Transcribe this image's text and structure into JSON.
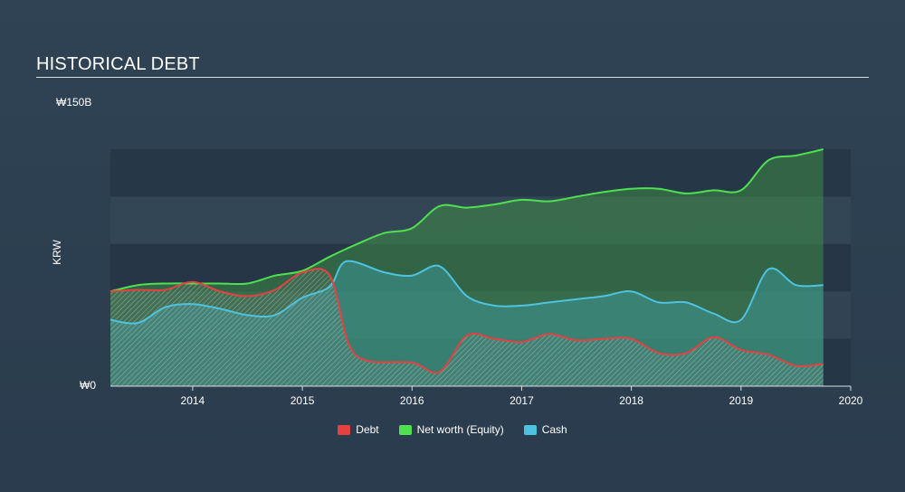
{
  "chart_data": {
    "type": "area",
    "title": "HISTORICAL DEBT",
    "ylabel": "KRW",
    "ytick_top": "₩150B",
    "ytick_zero": "₩0",
    "ylim": [
      0,
      150
    ],
    "xlim": [
      2013.25,
      2020.0
    ],
    "x_ticks": [
      "2014",
      "2015",
      "2016",
      "2017",
      "2018",
      "2019",
      "2020"
    ],
    "grid": true,
    "legend_position": "bottom-center",
    "series": [
      {
        "name": "Net worth (Equity)",
        "color": "#4fe04f",
        "points": [
          [
            2013.25,
            60
          ],
          [
            2013.5,
            64
          ],
          [
            2013.75,
            65
          ],
          [
            2014.0,
            65
          ],
          [
            2014.25,
            65
          ],
          [
            2014.5,
            65
          ],
          [
            2014.75,
            70
          ],
          [
            2015.0,
            73
          ],
          [
            2015.25,
            82
          ],
          [
            2015.5,
            90
          ],
          [
            2015.75,
            97
          ],
          [
            2016.0,
            100
          ],
          [
            2016.25,
            114
          ],
          [
            2016.5,
            113
          ],
          [
            2016.75,
            115
          ],
          [
            2017.0,
            118
          ],
          [
            2017.25,
            117
          ],
          [
            2017.5,
            120
          ],
          [
            2017.75,
            123
          ],
          [
            2018.0,
            125
          ],
          [
            2018.25,
            125
          ],
          [
            2018.5,
            122
          ],
          [
            2018.75,
            124
          ],
          [
            2019.0,
            124
          ],
          [
            2019.25,
            143
          ],
          [
            2019.5,
            146
          ],
          [
            2019.75,
            150
          ]
        ]
      },
      {
        "name": "Cash",
        "color": "#4ec3e0",
        "points": [
          [
            2013.25,
            42
          ],
          [
            2013.5,
            40
          ],
          [
            2013.75,
            50
          ],
          [
            2014.0,
            52
          ],
          [
            2014.25,
            49
          ],
          [
            2014.5,
            45
          ],
          [
            2014.75,
            45
          ],
          [
            2015.0,
            56
          ],
          [
            2015.25,
            63
          ],
          [
            2015.4,
            79
          ],
          [
            2015.75,
            72
          ],
          [
            2016.0,
            70
          ],
          [
            2016.25,
            76
          ],
          [
            2016.5,
            57
          ],
          [
            2016.75,
            51
          ],
          [
            2017.0,
            51
          ],
          [
            2017.25,
            53
          ],
          [
            2017.5,
            55
          ],
          [
            2017.75,
            57
          ],
          [
            2018.0,
            60
          ],
          [
            2018.25,
            53
          ],
          [
            2018.5,
            53
          ],
          [
            2018.75,
            46
          ],
          [
            2019.0,
            42
          ],
          [
            2019.25,
            74
          ],
          [
            2019.5,
            64
          ],
          [
            2019.75,
            64
          ]
        ]
      },
      {
        "name": "Debt",
        "color": "#e64141",
        "points": [
          [
            2013.25,
            60
          ],
          [
            2013.5,
            61
          ],
          [
            2013.75,
            61
          ],
          [
            2014.0,
            66
          ],
          [
            2014.25,
            60
          ],
          [
            2014.5,
            57
          ],
          [
            2014.75,
            61
          ],
          [
            2015.0,
            72
          ],
          [
            2015.25,
            70
          ],
          [
            2015.42,
            27
          ],
          [
            2015.6,
            16
          ],
          [
            2016.0,
            15
          ],
          [
            2016.25,
            9
          ],
          [
            2016.5,
            32
          ],
          [
            2016.75,
            30
          ],
          [
            2017.0,
            28
          ],
          [
            2017.25,
            33
          ],
          [
            2017.5,
            29
          ],
          [
            2017.75,
            30
          ],
          [
            2018.0,
            30
          ],
          [
            2018.25,
            21
          ],
          [
            2018.5,
            21
          ],
          [
            2018.75,
            31
          ],
          [
            2019.0,
            23
          ],
          [
            2019.25,
            20
          ],
          [
            2019.5,
            13
          ],
          [
            2019.75,
            14
          ]
        ]
      }
    ]
  }
}
